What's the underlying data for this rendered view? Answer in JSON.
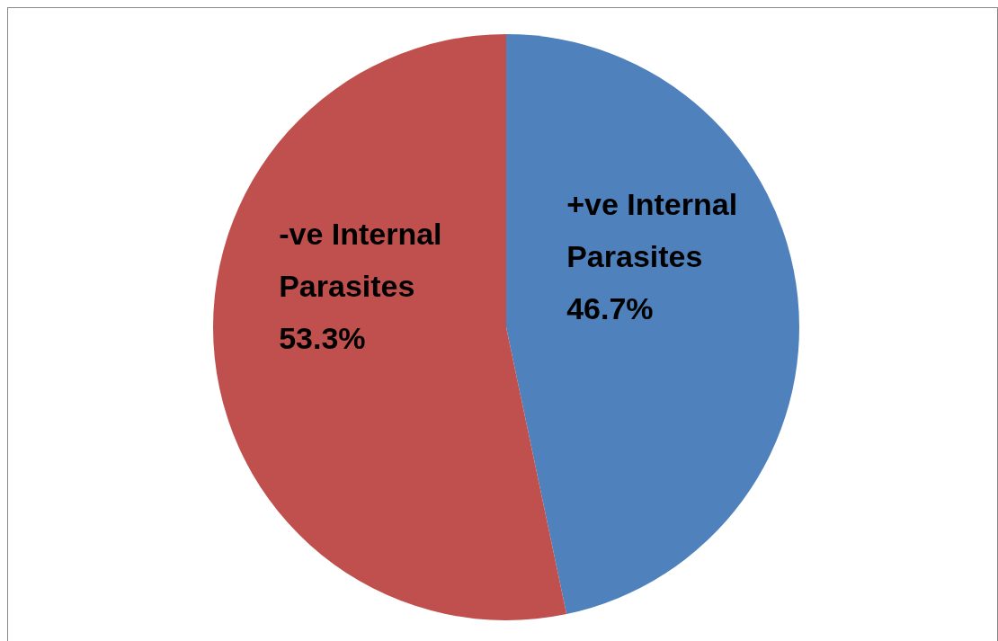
{
  "chart_data": {
    "type": "pie",
    "categories": [
      "+ve Internal Parasites",
      "-ve Internal Parasites"
    ],
    "values": [
      46.7,
      53.3
    ],
    "colors": [
      "#4f81bd",
      "#c0504d"
    ],
    "value_labels": [
      "46.7%",
      "53.3%"
    ],
    "legend": false
  }
}
